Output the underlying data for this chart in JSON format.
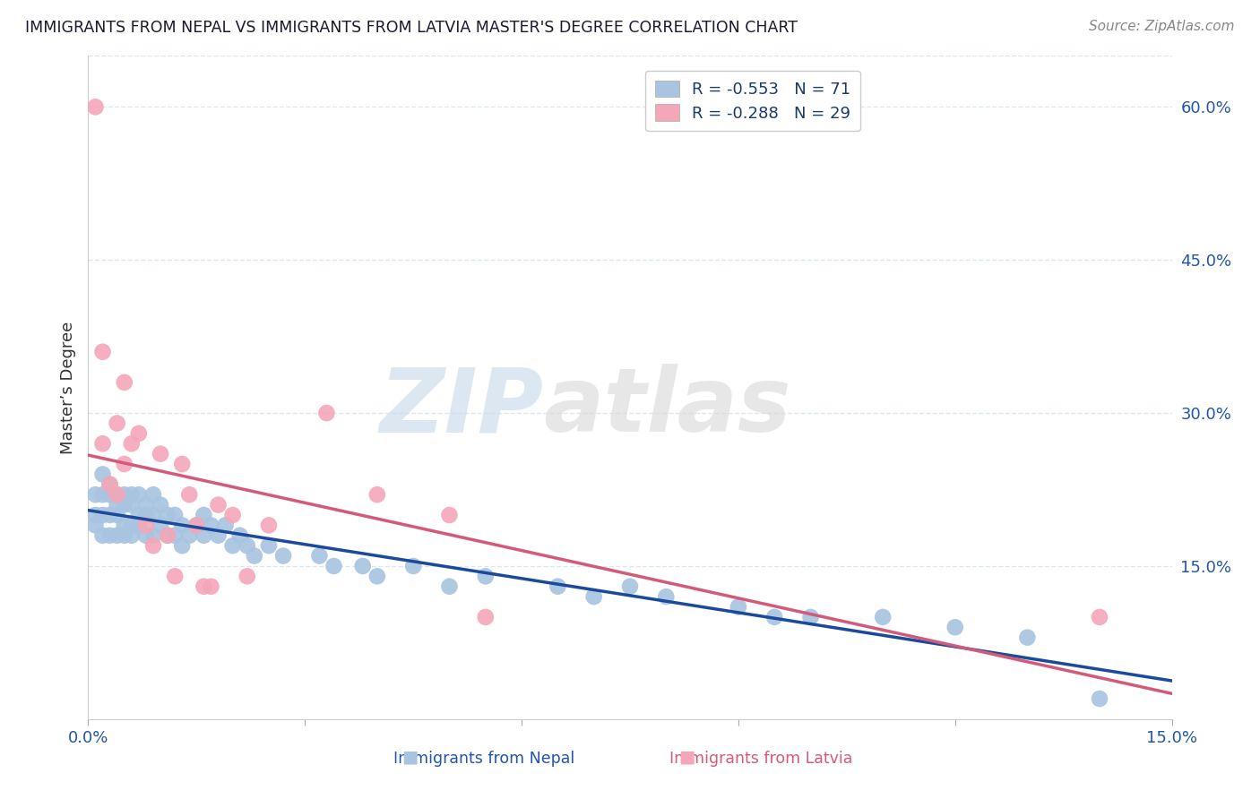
{
  "title": "IMMIGRANTS FROM NEPAL VS IMMIGRANTS FROM LATVIA MASTER'S DEGREE CORRELATION CHART",
  "source": "Source: ZipAtlas.com",
  "xlabel_nepal": "Immigrants from Nepal",
  "xlabel_latvia": "Immigrants from Latvia",
  "ylabel": "Master’s Degree",
  "xlim": [
    0.0,
    0.15
  ],
  "ylim": [
    0.0,
    0.65
  ],
  "xticks": [
    0.0,
    0.03,
    0.06,
    0.09,
    0.12,
    0.15
  ],
  "xtick_labels": [
    "0.0%",
    "",
    "",
    "",
    "",
    "15.0%"
  ],
  "yticks_right": [
    0.15,
    0.3,
    0.45,
    0.6
  ],
  "ytick_right_labels": [
    "15.0%",
    "30.0%",
    "45.0%",
    "60.0%"
  ],
  "nepal_R": -0.553,
  "nepal_N": 71,
  "latvia_R": -0.288,
  "latvia_N": 29,
  "nepal_color": "#a8c4e0",
  "latvia_color": "#f4a7b9",
  "nepal_line_color": "#1a4a9c",
  "latvia_line_color": "#d45a7a",
  "nepal_scatter_x": [
    0.001,
    0.001,
    0.001,
    0.002,
    0.002,
    0.002,
    0.002,
    0.003,
    0.003,
    0.003,
    0.003,
    0.004,
    0.004,
    0.004,
    0.004,
    0.005,
    0.005,
    0.005,
    0.005,
    0.006,
    0.006,
    0.006,
    0.006,
    0.007,
    0.007,
    0.007,
    0.008,
    0.008,
    0.008,
    0.009,
    0.009,
    0.009,
    0.01,
    0.01,
    0.011,
    0.011,
    0.012,
    0.012,
    0.013,
    0.013,
    0.014,
    0.015,
    0.016,
    0.016,
    0.017,
    0.018,
    0.019,
    0.02,
    0.021,
    0.022,
    0.023,
    0.025,
    0.027,
    0.032,
    0.034,
    0.038,
    0.04,
    0.045,
    0.05,
    0.055,
    0.065,
    0.07,
    0.075,
    0.08,
    0.09,
    0.095,
    0.1,
    0.11,
    0.12,
    0.13,
    0.14
  ],
  "nepal_scatter_y": [
    0.22,
    0.2,
    0.19,
    0.24,
    0.22,
    0.2,
    0.18,
    0.23,
    0.22,
    0.2,
    0.18,
    0.22,
    0.21,
    0.2,
    0.18,
    0.22,
    0.21,
    0.19,
    0.18,
    0.22,
    0.21,
    0.19,
    0.18,
    0.22,
    0.2,
    0.19,
    0.21,
    0.2,
    0.18,
    0.22,
    0.2,
    0.18,
    0.21,
    0.19,
    0.2,
    0.18,
    0.2,
    0.18,
    0.19,
    0.17,
    0.18,
    0.19,
    0.2,
    0.18,
    0.19,
    0.18,
    0.19,
    0.17,
    0.18,
    0.17,
    0.16,
    0.17,
    0.16,
    0.16,
    0.15,
    0.15,
    0.14,
    0.15,
    0.13,
    0.14,
    0.13,
    0.12,
    0.13,
    0.12,
    0.11,
    0.1,
    0.1,
    0.1,
    0.09,
    0.08,
    0.02
  ],
  "latvia_scatter_x": [
    0.001,
    0.002,
    0.002,
    0.003,
    0.004,
    0.004,
    0.005,
    0.005,
    0.006,
    0.007,
    0.008,
    0.009,
    0.01,
    0.011,
    0.012,
    0.013,
    0.014,
    0.015,
    0.016,
    0.017,
    0.018,
    0.02,
    0.022,
    0.025,
    0.033,
    0.04,
    0.05,
    0.055,
    0.14
  ],
  "latvia_scatter_y": [
    0.6,
    0.36,
    0.27,
    0.23,
    0.22,
    0.29,
    0.33,
    0.25,
    0.27,
    0.28,
    0.19,
    0.17,
    0.26,
    0.18,
    0.14,
    0.25,
    0.22,
    0.19,
    0.13,
    0.13,
    0.21,
    0.2,
    0.14,
    0.19,
    0.3,
    0.22,
    0.2,
    0.1,
    0.1
  ],
  "watermark_zip": "ZIP",
  "watermark_atlas": "atlas",
  "background_color": "#ffffff",
  "grid_color": "#dce8f0",
  "title_color": "#1a1a2e",
  "source_color": "#888888",
  "axis_color": "#2255aa",
  "label_color": "#333333",
  "legend_text_color": "#1a3a6e",
  "legend_n_color": "#cc4400"
}
